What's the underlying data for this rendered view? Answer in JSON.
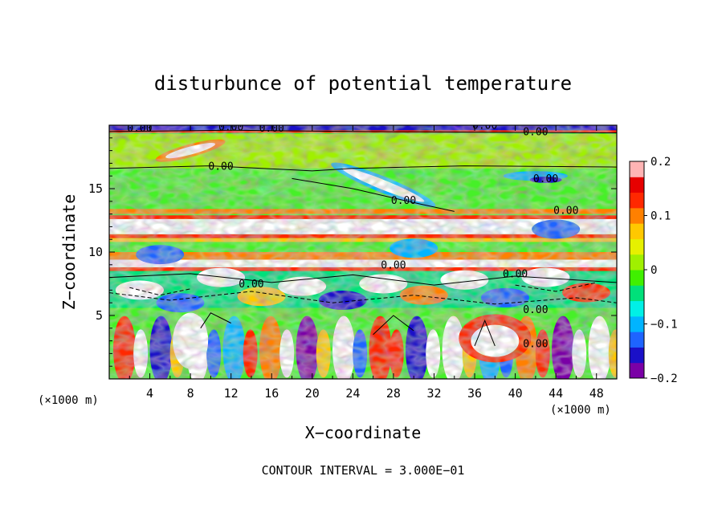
{
  "chart_data": {
    "type": "heatmap",
    "title": "disturbunce of potential temperature",
    "xlabel": "X−coordinate",
    "ylabel": "Z−coordinate",
    "x_unit_left": "(×1000 m)",
    "x_unit_right": "(×1000 m)",
    "x_ticks": [
      "4",
      "8",
      "12",
      "16",
      "20",
      "24",
      "28",
      "32",
      "36",
      "40",
      "44",
      "48"
    ],
    "y_ticks": [
      "5",
      "10",
      "15"
    ],
    "xlim": [
      0,
      50
    ],
    "ylim": [
      0,
      20
    ],
    "colorbar": {
      "vmin": -0.2,
      "vmax": 0.2,
      "tick_labels": [
        "0.2",
        "0.1",
        "0",
        "−0.1",
        "−0.2"
      ],
      "colors": [
        "#7a00a6",
        "#1a10c8",
        "#1e64ff",
        "#00b4ff",
        "#00f0e6",
        "#00e07a",
        "#40f000",
        "#a0f000",
        "#e6f000",
        "#ffc800",
        "#ff8000",
        "#ff2800",
        "#e60000",
        "#ffb4b4"
      ]
    },
    "contour_label": "0.00",
    "footer": "CONTOUR INTERVAL = 3.000E−01"
  }
}
